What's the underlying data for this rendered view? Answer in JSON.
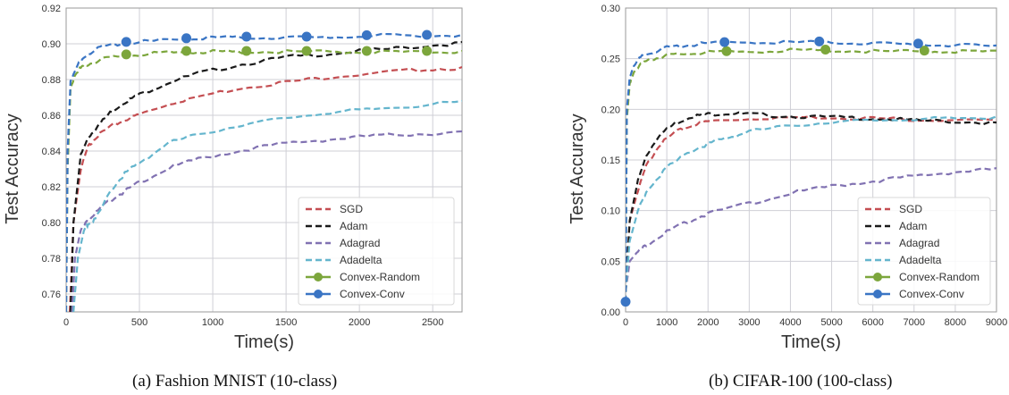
{
  "charts": [
    {
      "caption": "(a) Fashion MNIST (10-class)",
      "xlabel": "Time(s)",
      "ylabel": "Test Accuracy",
      "xlim": [
        0,
        2700
      ],
      "ylim": [
        0.75,
        0.92
      ],
      "xticks": [
        "0",
        "500",
        "1000",
        "1500",
        "2000",
        "2500"
      ],
      "yticks": [
        "0.76",
        "0.78",
        "0.80",
        "0.82",
        "0.84",
        "0.86",
        "0.88",
        "0.90",
        "0.92"
      ]
    },
    {
      "caption": "(b) CIFAR-100 (100-class)",
      "xlabel": "Time(s)",
      "ylabel": "Test Accuracy",
      "xlim": [
        0,
        9000
      ],
      "ylim": [
        0.0,
        0.3
      ],
      "xticks": [
        "0",
        "1000",
        "2000",
        "3000",
        "4000",
        "5000",
        "6000",
        "7000",
        "8000",
        "9000"
      ],
      "yticks": [
        "0.00",
        "0.05",
        "0.10",
        "0.15",
        "0.20",
        "0.25",
        "0.30"
      ]
    }
  ],
  "legend": [
    "SGD",
    "Adam",
    "Adagrad",
    "Adadelta",
    "Convex-Random",
    "Convex-Conv"
  ],
  "colors": {
    "SGD": "#c44e52",
    "Adam": "#1a1a1a",
    "Adagrad": "#8172b2",
    "Adadelta": "#64b5cd",
    "Convex-Random": "#7ca63c",
    "Convex-Conv": "#3a75c4"
  },
  "chart_data": [
    {
      "type": "line",
      "legend_position": "bottom-right",
      "grid": true,
      "xlim": [
        0,
        2700
      ],
      "ylim": [
        0.75,
        0.92
      ],
      "series": [
        {
          "name": "SGD",
          "style": "dashed",
          "x": [
            25,
            50,
            100,
            150,
            200,
            300,
            400,
            500,
            700,
            900,
            1200,
            1500,
            1800,
            2100,
            2400,
            2700
          ],
          "y": [
            0.75,
            0.8,
            0.83,
            0.843,
            0.848,
            0.854,
            0.858,
            0.861,
            0.867,
            0.871,
            0.876,
            0.879,
            0.882,
            0.884,
            0.886,
            0.887
          ]
        },
        {
          "name": "Adam",
          "style": "dashed",
          "x": [
            30,
            50,
            100,
            150,
            200,
            300,
            400,
            500,
            700,
            900,
            1200,
            1500,
            1800,
            2100,
            2400,
            2700
          ],
          "y": [
            0.75,
            0.8,
            0.838,
            0.848,
            0.853,
            0.862,
            0.868,
            0.872,
            0.879,
            0.884,
            0.889,
            0.893,
            0.895,
            0.897,
            0.899,
            0.901
          ]
        },
        {
          "name": "Adagrad",
          "style": "dashed",
          "x": [
            40,
            60,
            100,
            150,
            200,
            300,
            400,
            500,
            700,
            900,
            1200,
            1500,
            1800,
            2100,
            2400,
            2700
          ],
          "y": [
            0.75,
            0.78,
            0.796,
            0.802,
            0.806,
            0.813,
            0.818,
            0.823,
            0.831,
            0.836,
            0.841,
            0.845,
            0.847,
            0.849,
            0.85,
            0.851
          ]
        },
        {
          "name": "Adadelta",
          "style": "dashed",
          "x": [
            50,
            80,
            120,
            150,
            200,
            300,
            400,
            500,
            700,
            900,
            1200,
            1500,
            1800,
            2100,
            2400,
            2700
          ],
          "y": [
            0.75,
            0.78,
            0.795,
            0.8,
            0.802,
            0.818,
            0.828,
            0.834,
            0.845,
            0.85,
            0.855,
            0.859,
            0.862,
            0.864,
            0.866,
            0.868
          ]
        },
        {
          "name": "Convex-Random",
          "style": "dashed-marker",
          "x": [
            0,
            10,
            30,
            60,
            100,
            150,
            250,
            400,
            600,
            800,
            1000,
            1200,
            1500,
            1800,
            2100,
            2400,
            2700
          ],
          "y": [
            0.75,
            0.83,
            0.875,
            0.883,
            0.887,
            0.889,
            0.892,
            0.894,
            0.895,
            0.896,
            0.896,
            0.896,
            0.896,
            0.896,
            0.896,
            0.896,
            0.896
          ],
          "markers_x": [
            410,
            820,
            1230,
            1640,
            2050,
            2460
          ]
        },
        {
          "name": "Convex-Conv",
          "style": "dashed-marker",
          "x": [
            0,
            10,
            30,
            60,
            100,
            150,
            250,
            400,
            600,
            800,
            1000,
            1200,
            1500,
            1800,
            2100,
            2400,
            2700
          ],
          "y": [
            0.75,
            0.84,
            0.879,
            0.886,
            0.891,
            0.895,
            0.899,
            0.901,
            0.902,
            0.903,
            0.904,
            0.904,
            0.904,
            0.904,
            0.905,
            0.905,
            0.905
          ],
          "markers_x": [
            410,
            820,
            1230,
            1640,
            2050,
            2460
          ]
        }
      ]
    },
    {
      "type": "line",
      "legend_position": "bottom-right",
      "grid": true,
      "xlim": [
        0,
        9000
      ],
      "ylim": [
        0.0,
        0.3
      ],
      "series": [
        {
          "name": "SGD",
          "style": "dashed",
          "x": [
            0,
            100,
            300,
            500,
            800,
            1200,
            1600,
            2000,
            3000,
            4000,
            5000,
            6000,
            7000,
            8000,
            9000
          ],
          "y": [
            0.02,
            0.09,
            0.12,
            0.145,
            0.165,
            0.178,
            0.185,
            0.189,
            0.192,
            0.193,
            0.193,
            0.192,
            0.191,
            0.19,
            0.189
          ]
        },
        {
          "name": "Adam",
          "style": "dashed",
          "x": [
            0,
            100,
            300,
            500,
            800,
            1200,
            1600,
            2000,
            2500,
            3000,
            4000,
            5000,
            6000,
            7000,
            8000,
            9000
          ],
          "y": [
            0.02,
            0.09,
            0.13,
            0.155,
            0.175,
            0.187,
            0.194,
            0.196,
            0.197,
            0.196,
            0.194,
            0.193,
            0.192,
            0.19,
            0.189,
            0.187
          ]
        },
        {
          "name": "Adagrad",
          "style": "dashed",
          "x": [
            0,
            100,
            300,
            500,
            1000,
            1500,
            2000,
            3000,
            4000,
            5000,
            6000,
            7000,
            8000,
            9000
          ],
          "y": [
            0.02,
            0.05,
            0.06,
            0.067,
            0.08,
            0.09,
            0.098,
            0.108,
            0.118,
            0.125,
            0.13,
            0.135,
            0.139,
            0.142
          ]
        },
        {
          "name": "Adadelta",
          "style": "dashed",
          "x": [
            0,
            100,
            300,
            500,
            1000,
            1500,
            2000,
            2500,
            3000,
            4000,
            5000,
            6000,
            7000,
            8000,
            9000
          ],
          "y": [
            0.02,
            0.07,
            0.1,
            0.12,
            0.143,
            0.158,
            0.167,
            0.173,
            0.179,
            0.185,
            0.188,
            0.19,
            0.191,
            0.192,
            0.193
          ]
        },
        {
          "name": "Convex-Random",
          "style": "dashed-marker",
          "x": [
            0,
            30,
            100,
            200,
            400,
            700,
            1000,
            1500,
            2000,
            3000,
            4000,
            5000,
            6000,
            7000,
            8000,
            9000
          ],
          "y": [
            0.01,
            0.19,
            0.225,
            0.238,
            0.246,
            0.251,
            0.254,
            0.256,
            0.257,
            0.258,
            0.259,
            0.259,
            0.258,
            0.258,
            0.258,
            0.258
          ],
          "markers_x": [
            2450,
            4850,
            7250
          ]
        },
        {
          "name": "Convex-Conv",
          "style": "dashed-marker",
          "x": [
            0,
            30,
            100,
            200,
            400,
            700,
            1000,
            1500,
            2000,
            3000,
            4000,
            5000,
            6000,
            7000,
            8000,
            9000
          ],
          "y": [
            0.01,
            0.2,
            0.232,
            0.245,
            0.253,
            0.258,
            0.262,
            0.264,
            0.266,
            0.267,
            0.267,
            0.267,
            0.266,
            0.265,
            0.264,
            0.263
          ],
          "markers_x": [
            0,
            2400,
            4700,
            7100
          ]
        }
      ]
    }
  ]
}
